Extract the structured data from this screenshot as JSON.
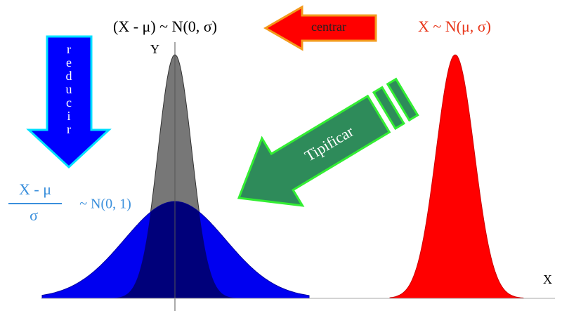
{
  "top_label": "(X - μ) ~ N(0, σ)",
  "center_arrow": {
    "label": "centrar"
  },
  "original_label": "X ~ N(μ, σ)",
  "reduce_arrow": {
    "letters": [
      "r",
      "e",
      "d",
      "u",
      "c",
      "i",
      "r"
    ]
  },
  "standardize_arrow": {
    "label": "Tipificar"
  },
  "standard_label": {
    "numerator": "X - μ",
    "denominator": "σ",
    "distribution": "~ N(0, 1)"
  },
  "axes": {
    "y": "Y",
    "x": "X"
  }
}
